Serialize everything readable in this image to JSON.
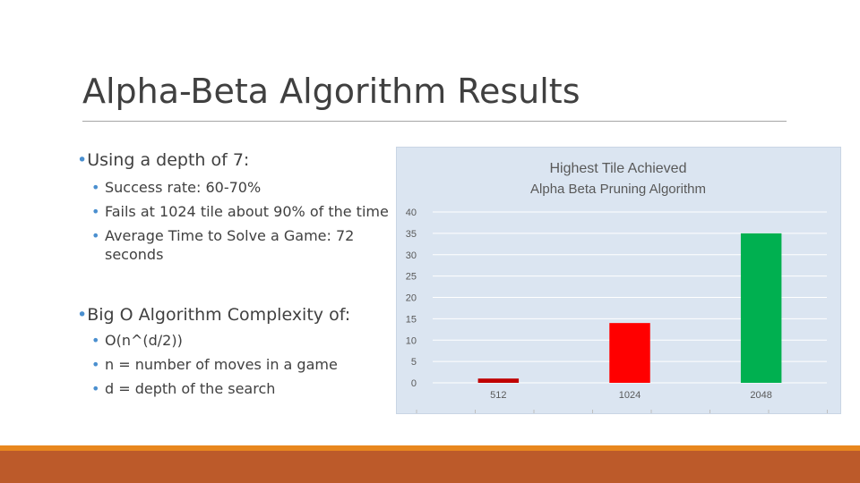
{
  "slide": {
    "title": "Alpha-Beta Algorithm Results"
  },
  "content": {
    "section1": {
      "heading": "Using a depth of 7:",
      "items": [
        "Success rate: 60-70%",
        "Fails at 1024 tile about 90% of the time",
        "Average Time to Solve a Game: 72 seconds"
      ]
    },
    "section2": {
      "heading": "Big O Algorithm Complexity of:",
      "items": [
        "O(n^(d/2))",
        "n = number of moves in a game",
        "d = depth of the search"
      ]
    },
    "bullet_glyph": "•"
  },
  "colors": {
    "accent_blue": "#4a8fcf",
    "chart_background": "#dbe5f1",
    "band_orange": "#e8871e",
    "band_rust": "#bc5a2a"
  },
  "chart_data": {
    "type": "bar",
    "title": "Highest Tile Achieved",
    "subtitle": "Alpha Beta Pruning Algorithm",
    "categories": [
      "512",
      "1024",
      "2048"
    ],
    "values": [
      1,
      14,
      35
    ],
    "bar_colors": [
      "#c00000",
      "#ff0000",
      "#00b050"
    ],
    "ylim": [
      0,
      40
    ],
    "yticks": [
      0,
      5,
      10,
      15,
      20,
      25,
      30,
      35,
      40
    ],
    "grid": true,
    "legend": "none"
  }
}
